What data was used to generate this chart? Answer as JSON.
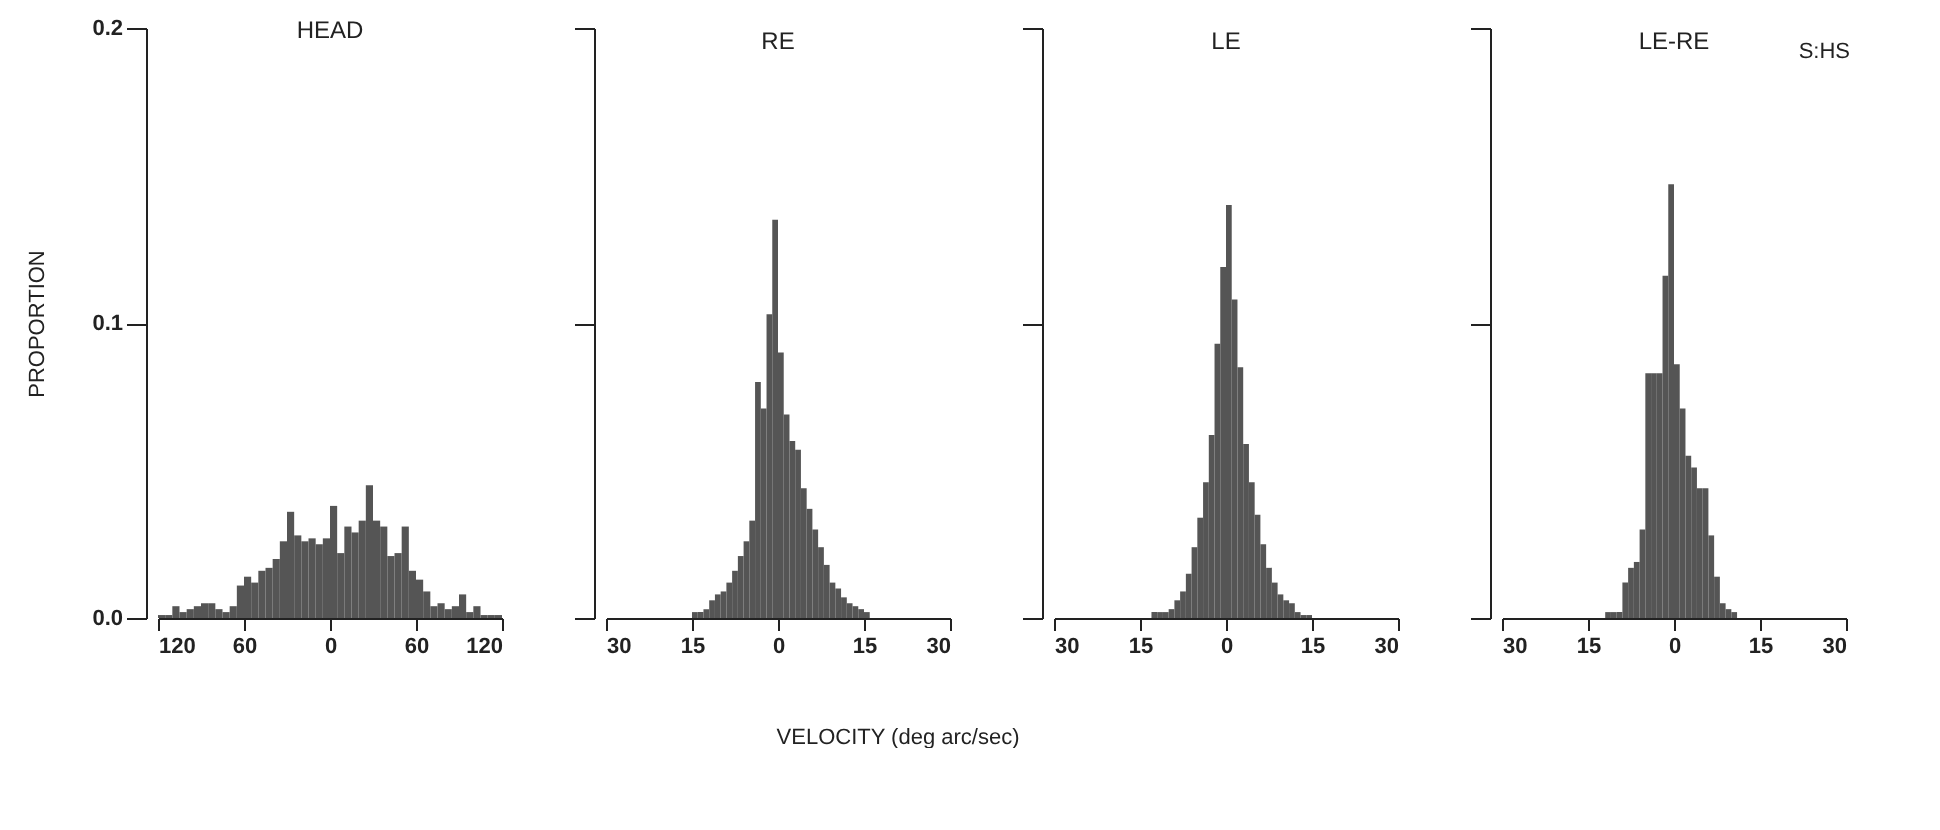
{
  "chart_data": [
    {
      "type": "histogram",
      "title": "HEAD",
      "ylabel": "PROPORTION",
      "color": "#555555",
      "bins": [
        -120,
        -115,
        -110,
        -105,
        -100,
        -95,
        -90,
        -85,
        -80,
        -75,
        -70,
        -65,
        -60,
        -55,
        -50,
        -45,
        -40,
        -35,
        -30,
        -25,
        -20,
        -15,
        -10,
        -5,
        0,
        5,
        10,
        15,
        20,
        25,
        30,
        35,
        40,
        45,
        50,
        55,
        60,
        65,
        70,
        75,
        80,
        85,
        90,
        95,
        100,
        105,
        110,
        115,
        120
      ],
      "values": [
        0.001,
        0.001,
        0.004,
        0.002,
        0.003,
        0.004,
        0.005,
        0.005,
        0.003,
        0.002,
        0.004,
        0.011,
        0.014,
        0.012,
        0.016,
        0.017,
        0.02,
        0.026,
        0.036,
        0.028,
        0.026,
        0.027,
        0.025,
        0.027,
        0.038,
        0.022,
        0.031,
        0.029,
        0.033,
        0.045,
        0.033,
        0.031,
        0.021,
        0.022,
        0.031,
        0.016,
        0.013,
        0.009,
        0.004,
        0.005,
        0.003,
        0.004,
        0.008,
        0.002,
        0.004,
        0.001,
        0.001,
        0.001
      ],
      "xlim": [
        -120,
        120
      ],
      "xticks": [
        {
          "value": -120,
          "label": "120"
        },
        {
          "value": -60,
          "label": "60"
        },
        0,
        60,
        120
      ],
      "ylim": [
        0,
        0.2
      ],
      "yticks": [
        {
          "value": 0,
          "label": "0.0"
        },
        0.1,
        0.2
      ]
    },
    {
      "type": "histogram",
      "title": "RE",
      "xlabel": "VELOCITY (deg arc/sec)",
      "color": "#555555",
      "bins": [
        -15,
        -14,
        -13,
        -12,
        -11,
        -10,
        -9,
        -8,
        -7,
        -6,
        -5,
        -4,
        -3,
        -2,
        -1,
        0,
        1,
        2,
        3,
        4,
        5,
        6,
        7,
        8,
        9,
        10,
        11,
        12,
        13,
        14,
        15,
        16
      ],
      "values": [
        0.002,
        0.002,
        0.003,
        0.006,
        0.008,
        0.009,
        0.012,
        0.016,
        0.021,
        0.026,
        0.033,
        0.08,
        0.071,
        0.103,
        0.135,
        0.09,
        0.069,
        0.06,
        0.057,
        0.044,
        0.037,
        0.03,
        0.024,
        0.018,
        0.012,
        0.01,
        0.007,
        0.005,
        0.004,
        0.003,
        0.002
      ],
      "xlim": [
        -30,
        30
      ],
      "xticks": [
        {
          "value": -30,
          "label": "30"
        },
        {
          "value": -15,
          "label": "15"
        },
        0,
        15,
        30
      ],
      "ylim": [
        0,
        0.2
      ],
      "yticks": [
        0,
        0.1,
        0.2
      ],
      "tick_labels": "x"
    },
    {
      "type": "histogram",
      "title": "LE",
      "color": "#555555",
      "bins": [
        -13,
        -12,
        -11,
        -10,
        -9,
        -8,
        -7,
        -6,
        -5,
        -4,
        -3,
        -2,
        -1,
        0,
        1,
        2,
        3,
        4,
        5,
        6,
        7,
        8,
        9,
        10,
        11,
        12,
        13,
        14,
        15
      ],
      "values": [
        0.002,
        0.002,
        0.002,
        0.003,
        0.006,
        0.009,
        0.015,
        0.024,
        0.034,
        0.046,
        0.062,
        0.093,
        0.119,
        0.14,
        0.108,
        0.085,
        0.059,
        0.046,
        0.035,
        0.025,
        0.017,
        0.012,
        0.008,
        0.006,
        0.005,
        0.002,
        0.001,
        0.001
      ],
      "xlim": [
        -30,
        30
      ],
      "xticks": [
        {
          "value": -30,
          "label": "30"
        },
        {
          "value": -15,
          "label": "15"
        },
        0,
        15,
        30
      ],
      "ylim": [
        0,
        0.2
      ],
      "yticks": [
        0,
        0.1,
        0.2
      ],
      "tick_labels": "x"
    },
    {
      "type": "histogram",
      "title": "LE-RE",
      "annotations": [
        "S:HS"
      ],
      "color": "#555555",
      "bins": [
        -12,
        -11,
        -10,
        -9,
        -8,
        -7,
        -6,
        -5,
        -4,
        -3,
        -2,
        -1,
        0,
        1,
        2,
        3,
        4,
        5,
        6,
        7,
        8,
        9,
        10,
        11
      ],
      "values": [
        0.002,
        0.002,
        0.002,
        0.012,
        0.017,
        0.019,
        0.03,
        0.083,
        0.083,
        0.083,
        0.116,
        0.147,
        0.086,
        0.071,
        0.055,
        0.051,
        0.044,
        0.044,
        0.028,
        0.014,
        0.005,
        0.003,
        0.002
      ],
      "xlim": [
        -30,
        30
      ],
      "xticks": [
        {
          "value": -30,
          "label": "30"
        },
        {
          "value": -15,
          "label": "15"
        },
        0,
        15,
        30
      ],
      "ylim": [
        0,
        0.2
      ],
      "yticks": [
        0,
        0.1,
        0.2
      ],
      "tick_labels": "x"
    }
  ]
}
